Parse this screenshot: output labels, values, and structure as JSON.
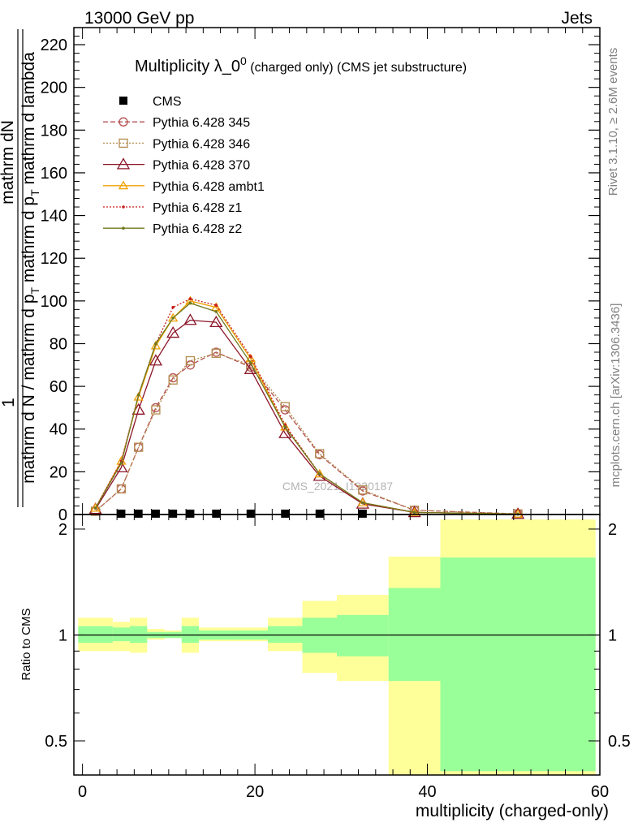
{
  "header": {
    "left": "13000 GeV pp",
    "right": "Jets"
  },
  "side_text": {
    "rivet": "Rivet 3.1.10, ≥ 2.6M events",
    "mcplots": "mcplots.cern.ch [arXiv:1306.3436]"
  },
  "watermark": "CMS_2021_I1920187",
  "chart_data": [
    {
      "type": "line",
      "title_main": "Multiplicity λ_0",
      "title_sup": "0",
      "title_suffix": " (charged only) (CMS jet substructure)",
      "ylabel_top": "1",
      "ylabel_num": "mathrm dN",
      "ylabel_den": "mathrm d N / mathrm d p_T mathrm d p_T mathrm d lambda",
      "ylabel_den_plain": "mathrm d N / mathrm d p",
      "ylabel_den_sub": "T",
      "ylabel_den_mid": " mathrm d p",
      "ylabel_den_sub2": "T",
      "ylabel_den_end": " mathrm d lambda",
      "xlim": [
        -1,
        60
      ],
      "ylim": [
        0,
        228
      ],
      "yticks": [
        0,
        20,
        40,
        60,
        80,
        100,
        120,
        140,
        160,
        180,
        200,
        220
      ],
      "legend_position": "top-left",
      "series": [
        {
          "name": "CMS",
          "color": "#000000",
          "style": "marker-square",
          "x": [
            4.5,
            6.5,
            8.5,
            10.5,
            12.5,
            15.5,
            19.5,
            23.5,
            27.5,
            32.5
          ],
          "y": [
            0.4,
            0.4,
            0.4,
            0.4,
            0.4,
            0.4,
            0.4,
            0.4,
            0.4,
            0.4
          ]
        },
        {
          "name": "Pythia 6.428 345",
          "color": "#b45050",
          "style": "dashed-circle",
          "x": [
            1.5,
            4.5,
            6.5,
            8.5,
            10.5,
            12.5,
            15.5,
            19.5,
            23.5,
            27.5,
            32.5,
            38.5,
            50.5
          ],
          "y": [
            1.5,
            12,
            31.5,
            50,
            64,
            70,
            76,
            69,
            49,
            28,
            11,
            2,
            0.3
          ]
        },
        {
          "name": "Pythia 6.428 346",
          "color": "#b48c50",
          "style": "dotted-square",
          "x": [
            1.5,
            4.5,
            6.5,
            8.5,
            10.5,
            12.5,
            15.5,
            19.5,
            23.5,
            27.5,
            32.5,
            38.5,
            50.5
          ],
          "y": [
            1.5,
            12,
            31.5,
            49,
            63,
            72,
            75.5,
            70,
            50.5,
            28.5,
            11.5,
            2,
            0.3
          ]
        },
        {
          "name": "Pythia 6.428 370",
          "color": "#8c1428",
          "style": "solid-triangle",
          "x": [
            1.5,
            4.5,
            6.5,
            8.5,
            10.5,
            12.5,
            15.5,
            19.5,
            23.5,
            27.5,
            32.5,
            38.5,
            50.5
          ],
          "y": [
            2.5,
            22,
            49,
            72,
            85,
            91,
            90,
            68,
            38,
            18,
            5,
            1,
            0.2
          ]
        },
        {
          "name": "Pythia 6.428 ambt1",
          "color": "#f0a000",
          "style": "solid-triangle-open",
          "x": [
            1.5,
            4.5,
            6.5,
            8.5,
            10.5,
            12.5,
            15.5,
            19.5,
            23.5,
            27.5,
            32.5,
            38.5,
            50.5
          ],
          "y": [
            3,
            25,
            55,
            79,
            92,
            100,
            97,
            73,
            41,
            19,
            5.5,
            1,
            0.2
          ]
        },
        {
          "name": "Pythia 6.428 z1",
          "color": "#c81e1e",
          "style": "dotted-dot",
          "x": [
            1.5,
            4.5,
            6.5,
            8.5,
            10.5,
            12.5,
            15.5,
            19.5,
            23.5,
            27.5,
            32.5,
            38.5,
            50.5
          ],
          "y": [
            3,
            25,
            56,
            80,
            97,
            101,
            98,
            74,
            42,
            19,
            5.5,
            1,
            0.2
          ]
        },
        {
          "name": "Pythia 6.428 z2",
          "color": "#6e781e",
          "style": "solid-dot",
          "x": [
            1.5,
            4.5,
            6.5,
            8.5,
            10.5,
            12.5,
            15.5,
            19.5,
            23.5,
            27.5,
            32.5,
            38.5,
            50.5
          ],
          "y": [
            3,
            24,
            56,
            80,
            92,
            99,
            95,
            71,
            41,
            19,
            5.5,
            1,
            0.2
          ]
        }
      ]
    },
    {
      "type": "area",
      "ylabel": "Ratio to CMS",
      "xlabel": "multiplicity (charged-only)",
      "xlim": [
        -1,
        60
      ],
      "ylim": [
        0.4,
        2.2
      ],
      "xticks": [
        0,
        20,
        40,
        60
      ],
      "yticks": [
        0.5,
        1,
        2
      ],
      "reference_line": 1,
      "bands": {
        "stat_color": "#99ff99",
        "total_color": "#ffff99",
        "bins": [
          {
            "lo": -0.5,
            "hi": 3.5,
            "inner_lo": 0.95,
            "inner_hi": 1.06,
            "outer_lo": 0.9,
            "outer_hi": 1.12
          },
          {
            "lo": 3.5,
            "hi": 5.5,
            "inner_lo": 0.96,
            "inner_hi": 1.05,
            "outer_lo": 0.9,
            "outer_hi": 1.09
          },
          {
            "lo": 5.5,
            "hi": 7.5,
            "inner_lo": 0.95,
            "inner_hi": 1.06,
            "outer_lo": 0.89,
            "outer_hi": 1.12
          },
          {
            "lo": 7.5,
            "hi": 9.5,
            "inner_lo": 0.98,
            "inner_hi": 1.02,
            "outer_lo": 0.97,
            "outer_hi": 1.04
          },
          {
            "lo": 9.5,
            "hi": 11.5,
            "inner_lo": 0.98,
            "inner_hi": 1.02,
            "outer_lo": 0.98,
            "outer_hi": 1.03
          },
          {
            "lo": 11.5,
            "hi": 13.5,
            "inner_lo": 0.95,
            "inner_hi": 1.06,
            "outer_lo": 0.89,
            "outer_hi": 1.12
          },
          {
            "lo": 13.5,
            "hi": 17.5,
            "inner_lo": 0.97,
            "inner_hi": 1.03,
            "outer_lo": 0.96,
            "outer_hi": 1.05
          },
          {
            "lo": 17.5,
            "hi": 21.5,
            "inner_lo": 0.97,
            "inner_hi": 1.03,
            "outer_lo": 0.96,
            "outer_hi": 1.05
          },
          {
            "lo": 21.5,
            "hi": 25.5,
            "inner_lo": 0.95,
            "inner_hi": 1.06,
            "outer_lo": 0.9,
            "outer_hi": 1.12
          },
          {
            "lo": 25.5,
            "hi": 29.5,
            "inner_lo": 0.89,
            "inner_hi": 1.12,
            "outer_lo": 0.78,
            "outer_hi": 1.25
          },
          {
            "lo": 29.5,
            "hi": 35.5,
            "inner_lo": 0.87,
            "inner_hi": 1.14,
            "outer_lo": 0.74,
            "outer_hi": 1.3
          },
          {
            "lo": 35.5,
            "hi": 41.5,
            "inner_lo": 0.74,
            "inner_hi": 1.36,
            "outer_lo": 0.4,
            "outer_hi": 1.67
          },
          {
            "lo": 41.5,
            "hi": 59.5,
            "inner_lo": 0.41,
            "inner_hi": 1.66,
            "outer_lo": 0.4,
            "outer_hi": 2.13
          }
        ]
      }
    }
  ]
}
